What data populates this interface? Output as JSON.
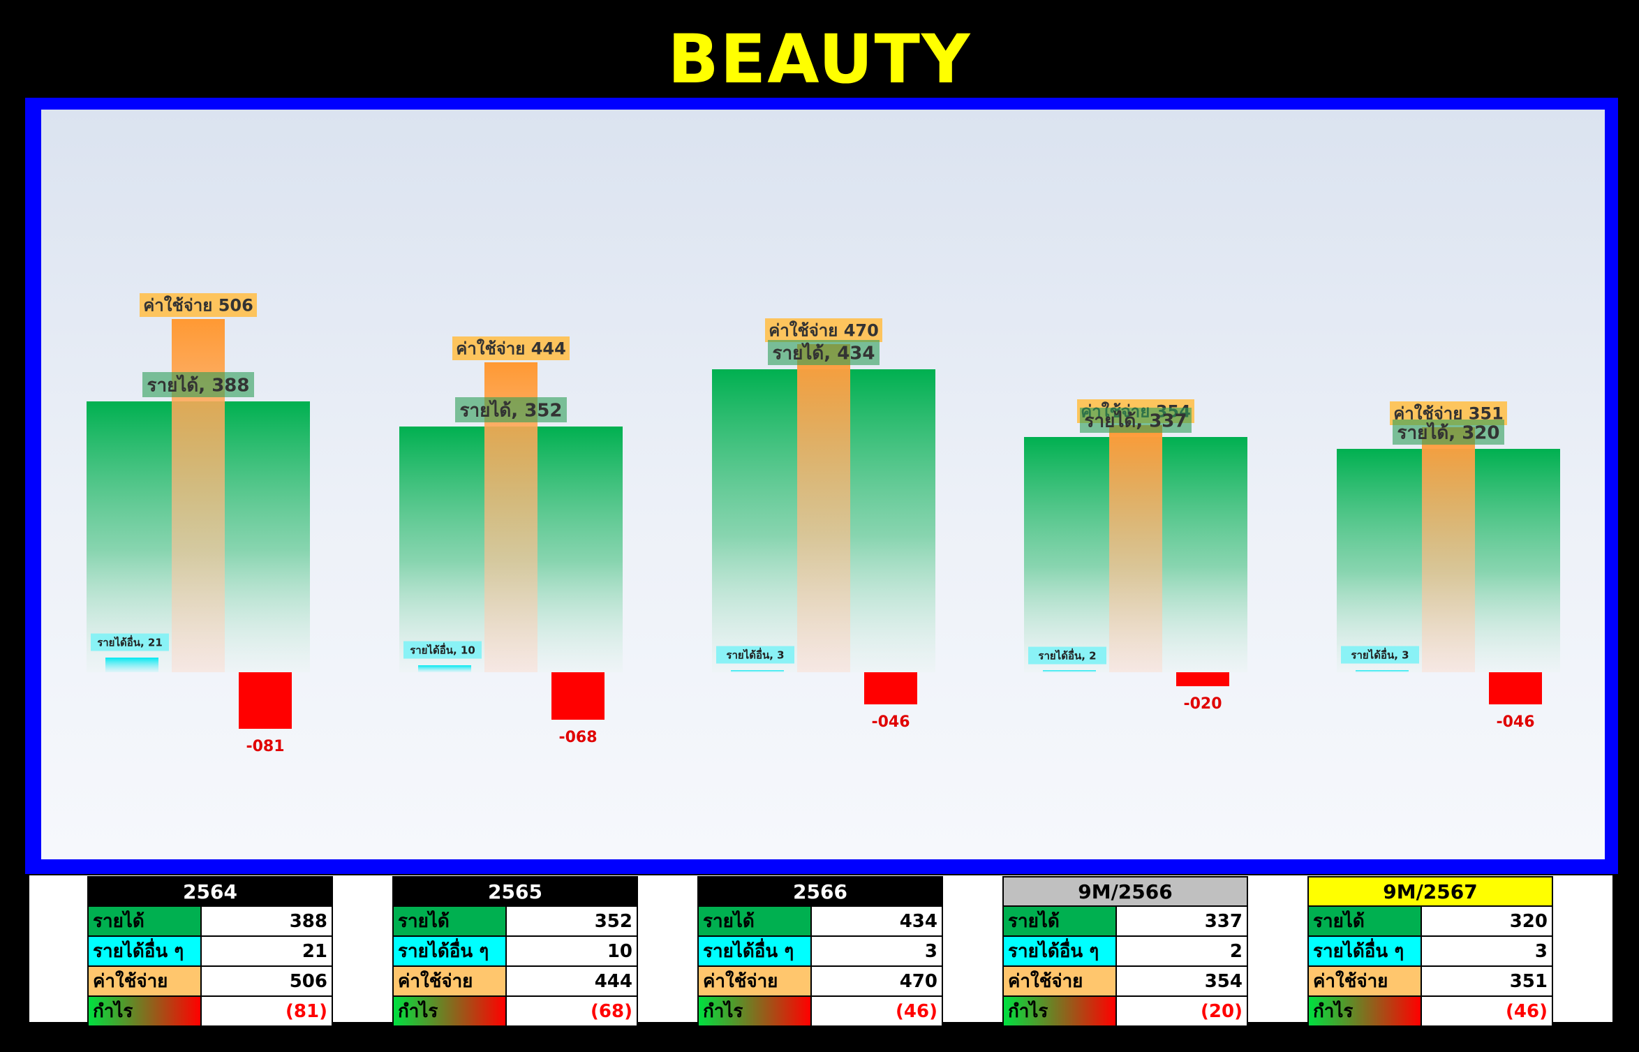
{
  "title": "BEAUTY",
  "colors": {
    "income": "#00b050",
    "other_income": "#00ffff",
    "expense": "#ff9933",
    "profit_negative": "#ff0000",
    "title": "#ffff00",
    "frame": "#0000ff"
  },
  "chart_data": {
    "type": "bar",
    "categories": [
      "2564",
      "2565",
      "2566",
      "9M/2566",
      "9M/2567"
    ],
    "series": [
      {
        "name": "รายได้",
        "values": [
          388,
          352,
          434,
          337,
          320
        ]
      },
      {
        "name": "รายได้อื่น",
        "values": [
          21,
          10,
          3,
          2,
          3
        ]
      },
      {
        "name": "ค่าใช้จ่าย",
        "values": [
          506,
          444,
          470,
          354,
          351
        ]
      },
      {
        "name": "กำไร",
        "values": [
          -81,
          -68,
          -46,
          -20,
          -46
        ]
      }
    ],
    "data_labels": {
      "income": [
        "รายได้, 388",
        "รายได้, 352",
        "รายได้, 434",
        "รายได้, 337",
        "รายได้, 320"
      ],
      "other_income": [
        "รายได้อื่น, 21",
        "รายได้อื่น, 10",
        "รายได้อื่น, 3",
        "รายได้อื่น, 2",
        "รายได้อื่น, 3"
      ],
      "expense": [
        "ค่าใช้จ่าย 506",
        "ค่าใช้จ่าย 444",
        "ค่าใช้จ่าย 470",
        "ค่าใช้จ่าย 354",
        "ค่าใช้จ่าย 351"
      ],
      "profit": [
        "-081",
        "-068",
        "-046",
        "-020",
        "-046"
      ]
    },
    "ylim": [
      -120,
      560
    ],
    "grid": false,
    "legend": "none"
  },
  "tables": [
    {
      "header": "2564",
      "header_style": "black",
      "rows": [
        {
          "label": "รายได้",
          "value": "388"
        },
        {
          "label": "รายได้อื่น ๆ",
          "value": "21"
        },
        {
          "label": "ค่าใช้จ่าย",
          "value": "506"
        },
        {
          "label": "กำไร",
          "value": "(81)"
        }
      ]
    },
    {
      "header": "2565",
      "header_style": "black",
      "rows": [
        {
          "label": "รายได้",
          "value": "352"
        },
        {
          "label": "รายได้อื่น ๆ",
          "value": "10"
        },
        {
          "label": "ค่าใช้จ่าย",
          "value": "444"
        },
        {
          "label": "กำไร",
          "value": "(68)"
        }
      ]
    },
    {
      "header": "2566",
      "header_style": "black",
      "rows": [
        {
          "label": "รายได้",
          "value": "434"
        },
        {
          "label": "รายได้อื่น ๆ",
          "value": "3"
        },
        {
          "label": "ค่าใช้จ่าย",
          "value": "470"
        },
        {
          "label": "กำไร",
          "value": "(46)"
        }
      ]
    },
    {
      "header": "9M/2566",
      "header_style": "gray",
      "rows": [
        {
          "label": "รายได้",
          "value": "337"
        },
        {
          "label": "รายได้อื่น ๆ",
          "value": "2"
        },
        {
          "label": "ค่าใช้จ่าย",
          "value": "354"
        },
        {
          "label": "กำไร",
          "value": "(20)"
        }
      ]
    },
    {
      "header": "9M/2567",
      "header_style": "yellow",
      "rows": [
        {
          "label": "รายได้",
          "value": "320"
        },
        {
          "label": "รายได้อื่น ๆ",
          "value": "3"
        },
        {
          "label": "ค่าใช้จ่าย",
          "value": "351"
        },
        {
          "label": "กำไร",
          "value": "(46)"
        }
      ]
    }
  ]
}
